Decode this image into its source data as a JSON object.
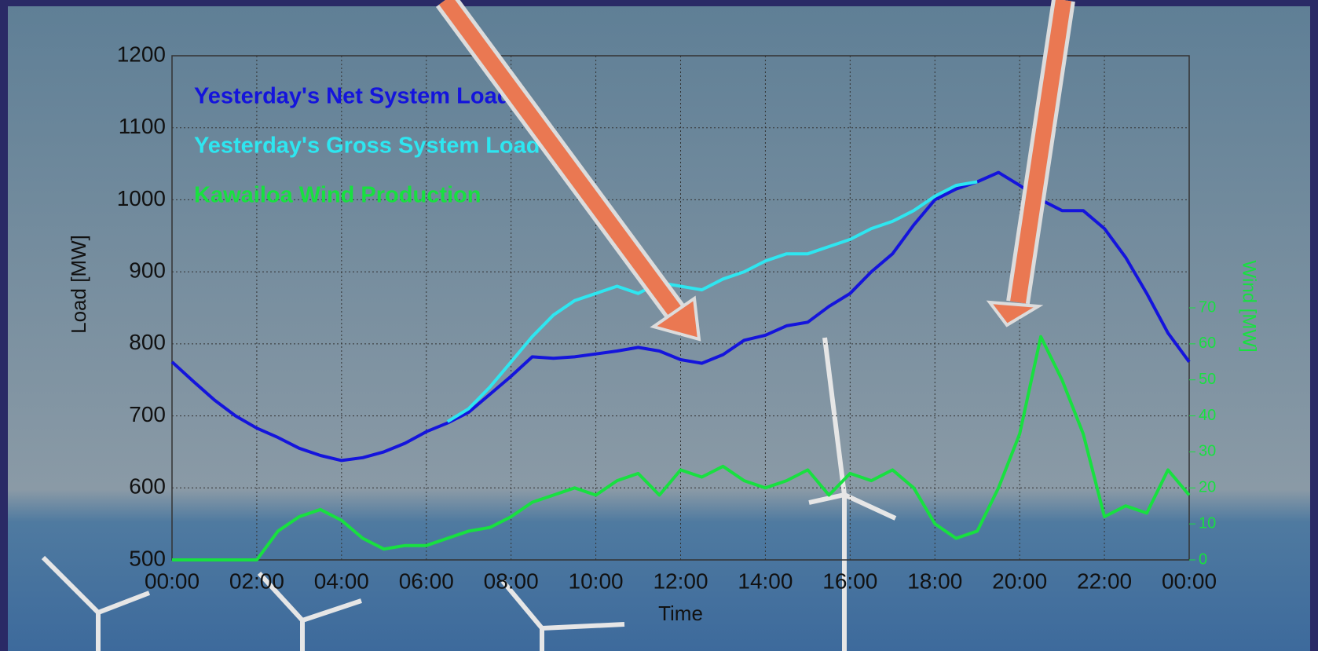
{
  "chart_data": {
    "type": "line",
    "xlabel": "Time",
    "ylabel": "Load [MW]",
    "y2label": "Wind [MW]",
    "x": [
      0,
      0.5,
      1,
      1.5,
      2,
      2.5,
      3,
      3.5,
      4,
      4.5,
      5,
      5.5,
      6,
      6.5,
      7,
      7.5,
      8,
      8.5,
      9,
      9.5,
      10,
      10.5,
      11,
      11.5,
      12,
      12.5,
      13,
      13.5,
      14,
      14.5,
      15,
      15.5,
      16,
      16.5,
      17,
      17.5,
      18,
      18.5,
      19,
      19.5,
      20,
      20.5,
      21,
      21.5,
      22,
      22.5,
      23,
      23.5,
      24
    ],
    "xlim": [
      0,
      24
    ],
    "xticks": [
      {
        "value": 0,
        "label": "00:00"
      },
      {
        "value": 2,
        "label": "02:00"
      },
      {
        "value": 4,
        "label": "04:00"
      },
      {
        "value": 6,
        "label": "06:00"
      },
      {
        "value": 8,
        "label": "08:00"
      },
      {
        "value": 10,
        "label": "10:00"
      },
      {
        "value": 12,
        "label": "12:00"
      },
      {
        "value": 14,
        "label": "14:00"
      },
      {
        "value": 16,
        "label": "16:00"
      },
      {
        "value": 18,
        "label": "18:00"
      },
      {
        "value": 20,
        "label": "20:00"
      },
      {
        "value": 22,
        "label": "22:00"
      },
      {
        "value": 24,
        "label": "00:00"
      }
    ],
    "ylim": [
      500,
      1200
    ],
    "yticks": [
      500,
      600,
      700,
      800,
      900,
      1000,
      1100,
      1200
    ],
    "y2lim": [
      0,
      140
    ],
    "y2ticks": [
      0,
      10,
      20,
      30,
      40,
      50,
      60,
      70
    ],
    "grid": true,
    "legend": "upper left",
    "series": [
      {
        "name": "Yesterday's Net System Load",
        "color": "#1414dc",
        "values": [
          775,
          748,
          722,
          700,
          683,
          670,
          655,
          645,
          638,
          642,
          650,
          662,
          678,
          690,
          705,
          730,
          755,
          782,
          780,
          782,
          786,
          790,
          795,
          790,
          778,
          773,
          785,
          805,
          812,
          825,
          830,
          852,
          870,
          900,
          925,
          965,
          1000,
          1015,
          1025,
          1038,
          1020,
          1000,
          985,
          985,
          960,
          920,
          870,
          815,
          775
        ]
      },
      {
        "name": "Yesterday's Gross System Load",
        "color": "#2ee6f0",
        "values": [
          null,
          null,
          null,
          null,
          null,
          null,
          null,
          null,
          null,
          null,
          null,
          null,
          null,
          692,
          710,
          740,
          775,
          810,
          840,
          860,
          870,
          880,
          870,
          885,
          880,
          875,
          890,
          900,
          915,
          925,
          925,
          935,
          945,
          960,
          970,
          985,
          1005,
          1020,
          1025,
          null,
          null,
          null,
          null,
          null,
          null,
          null,
          null,
          null,
          null
        ]
      },
      {
        "name": "Kawailoa Wind Production",
        "color": "#18e040",
        "axis": "y2",
        "values": [
          0,
          0,
          0,
          0,
          0,
          8,
          12,
          14,
          11,
          6,
          3,
          4,
          4,
          6,
          8,
          9,
          12,
          16,
          18,
          20,
          18,
          22,
          24,
          18,
          25,
          23,
          26,
          22,
          20,
          22,
          25,
          18,
          24,
          22,
          25,
          20,
          10,
          6,
          8,
          20,
          35,
          62,
          50,
          35,
          12,
          15,
          13,
          25,
          18
        ]
      }
    ]
  }
}
